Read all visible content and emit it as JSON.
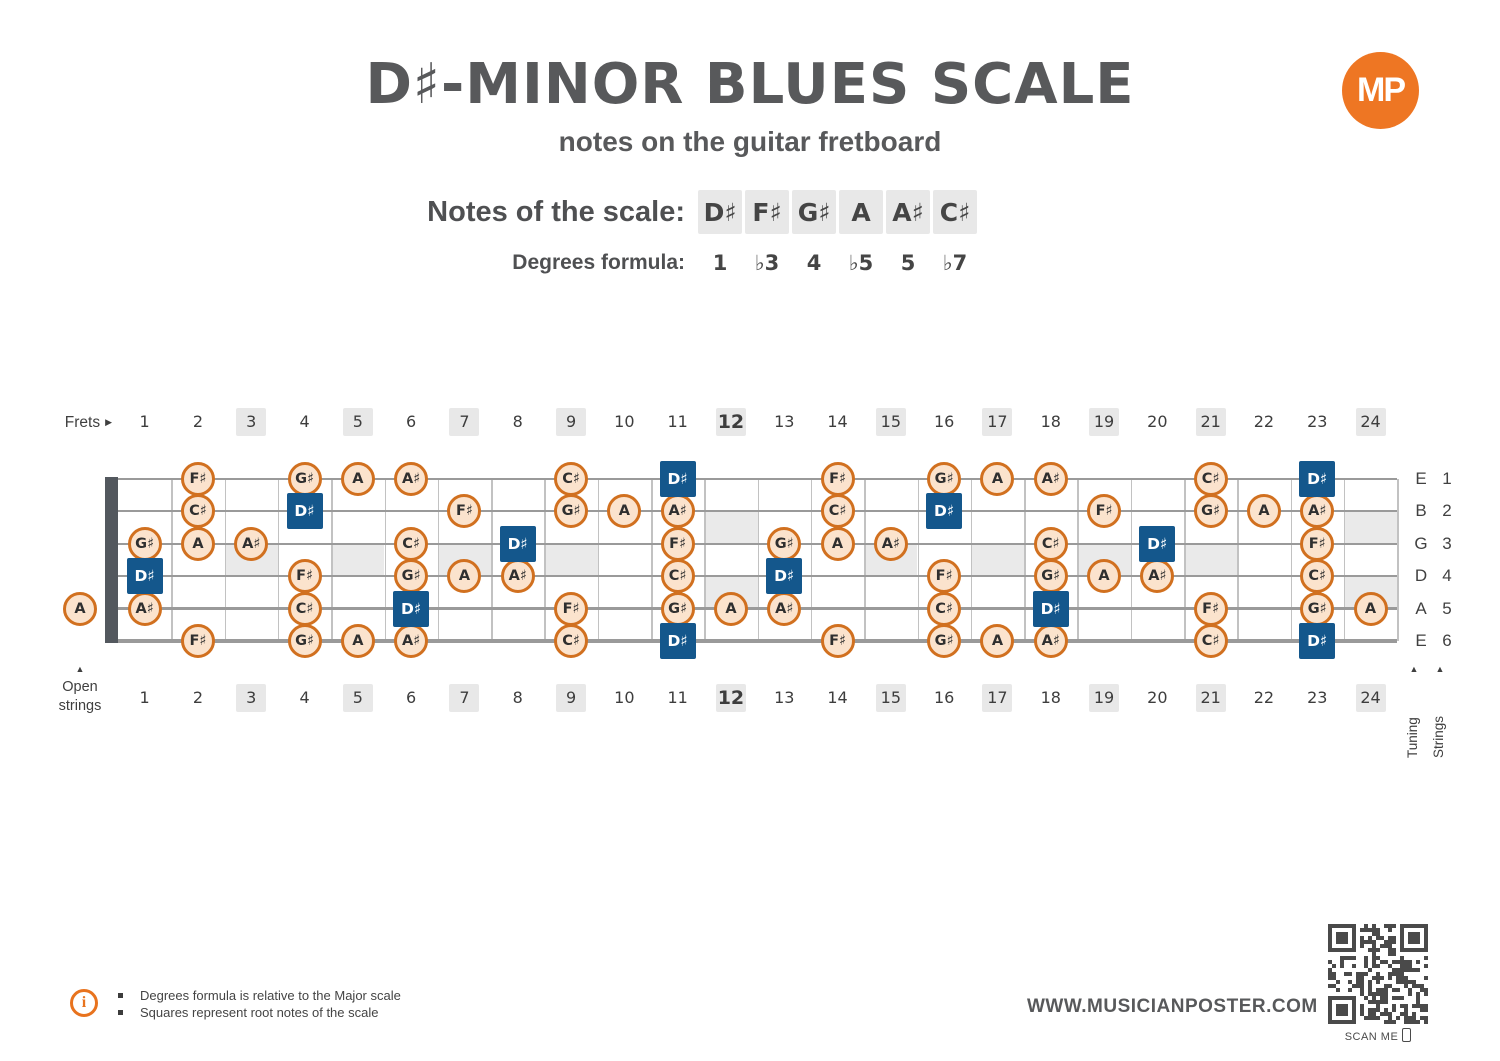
{
  "header": {
    "title": "D♯-MINOR BLUES SCALE",
    "subtitle": "notes on the guitar fretboard",
    "logo_text": "MP"
  },
  "scale": {
    "notes_label": "Notes of the scale:",
    "notes": [
      "D♯",
      "F♯",
      "G♯",
      "A",
      "A♯",
      "C♯"
    ],
    "degrees_label": "Degrees formula:",
    "degrees": [
      "1",
      "♭3",
      "4",
      "♭5",
      "5",
      "♭7"
    ]
  },
  "fretboard": {
    "frets_label": "Frets",
    "open_strings_label_line1": "Open",
    "open_strings_label_line2": "strings",
    "tuning_label": "Tuning",
    "strings_label": "Strings",
    "fret_count": 24,
    "marker_frets": [
      3,
      5,
      7,
      9,
      12,
      15,
      17,
      19,
      21,
      24
    ],
    "double_marker_frets": [
      12,
      24
    ],
    "bold_frets": [
      12
    ],
    "strings": [
      {
        "number": "1",
        "tuning": "E",
        "notes": [
          {
            "fret": 2,
            "note": "F♯"
          },
          {
            "fret": 4,
            "note": "G♯"
          },
          {
            "fret": 5,
            "note": "A"
          },
          {
            "fret": 6,
            "note": "A♯"
          },
          {
            "fret": 9,
            "note": "C♯"
          },
          {
            "fret": 11,
            "note": "D♯",
            "root": true
          },
          {
            "fret": 14,
            "note": "F♯"
          },
          {
            "fret": 16,
            "note": "G♯"
          },
          {
            "fret": 17,
            "note": "A"
          },
          {
            "fret": 18,
            "note": "A♯"
          },
          {
            "fret": 21,
            "note": "C♯"
          },
          {
            "fret": 23,
            "note": "D♯",
            "root": true
          }
        ]
      },
      {
        "number": "2",
        "tuning": "B",
        "notes": [
          {
            "fret": 2,
            "note": "C♯"
          },
          {
            "fret": 4,
            "note": "D♯",
            "root": true
          },
          {
            "fret": 7,
            "note": "F♯"
          },
          {
            "fret": 9,
            "note": "G♯"
          },
          {
            "fret": 10,
            "note": "A"
          },
          {
            "fret": 11,
            "note": "A♯"
          },
          {
            "fret": 14,
            "note": "C♯"
          },
          {
            "fret": 16,
            "note": "D♯",
            "root": true
          },
          {
            "fret": 19,
            "note": "F♯"
          },
          {
            "fret": 21,
            "note": "G♯"
          },
          {
            "fret": 22,
            "note": "A"
          },
          {
            "fret": 23,
            "note": "A♯"
          }
        ]
      },
      {
        "number": "3",
        "tuning": "G",
        "notes": [
          {
            "fret": 1,
            "note": "G♯"
          },
          {
            "fret": 2,
            "note": "A"
          },
          {
            "fret": 3,
            "note": "A♯"
          },
          {
            "fret": 6,
            "note": "C♯"
          },
          {
            "fret": 8,
            "note": "D♯",
            "root": true
          },
          {
            "fret": 11,
            "note": "F♯"
          },
          {
            "fret": 13,
            "note": "G♯"
          },
          {
            "fret": 14,
            "note": "A"
          },
          {
            "fret": 15,
            "note": "A♯"
          },
          {
            "fret": 18,
            "note": "C♯"
          },
          {
            "fret": 20,
            "note": "D♯",
            "root": true
          },
          {
            "fret": 23,
            "note": "F♯"
          }
        ]
      },
      {
        "number": "4",
        "tuning": "D",
        "notes": [
          {
            "fret": 1,
            "note": "D♯",
            "root": true
          },
          {
            "fret": 4,
            "note": "F♯"
          },
          {
            "fret": 6,
            "note": "G♯"
          },
          {
            "fret": 7,
            "note": "A"
          },
          {
            "fret": 8,
            "note": "A♯"
          },
          {
            "fret": 11,
            "note": "C♯"
          },
          {
            "fret": 13,
            "note": "D♯",
            "root": true
          },
          {
            "fret": 16,
            "note": "F♯"
          },
          {
            "fret": 18,
            "note": "G♯"
          },
          {
            "fret": 19,
            "note": "A"
          },
          {
            "fret": 20,
            "note": "A♯"
          },
          {
            "fret": 23,
            "note": "C♯"
          }
        ]
      },
      {
        "number": "5",
        "tuning": "A",
        "notes": [
          {
            "fret": 0,
            "note": "A"
          },
          {
            "fret": 1,
            "note": "A♯"
          },
          {
            "fret": 4,
            "note": "C♯"
          },
          {
            "fret": 6,
            "note": "D♯",
            "root": true
          },
          {
            "fret": 9,
            "note": "F♯"
          },
          {
            "fret": 11,
            "note": "G♯"
          },
          {
            "fret": 12,
            "note": "A"
          },
          {
            "fret": 13,
            "note": "A♯"
          },
          {
            "fret": 16,
            "note": "C♯"
          },
          {
            "fret": 18,
            "note": "D♯",
            "root": true
          },
          {
            "fret": 21,
            "note": "F♯"
          },
          {
            "fret": 23,
            "note": "G♯"
          },
          {
            "fret": 24,
            "note": "A"
          }
        ]
      },
      {
        "number": "6",
        "tuning": "E",
        "notes": [
          {
            "fret": 2,
            "note": "F♯"
          },
          {
            "fret": 4,
            "note": "G♯"
          },
          {
            "fret": 5,
            "note": "A"
          },
          {
            "fret": 6,
            "note": "A♯"
          },
          {
            "fret": 9,
            "note": "C♯"
          },
          {
            "fret": 11,
            "note": "D♯",
            "root": true
          },
          {
            "fret": 14,
            "note": "F♯"
          },
          {
            "fret": 16,
            "note": "G♯"
          },
          {
            "fret": 17,
            "note": "A"
          },
          {
            "fret": 18,
            "note": "A♯"
          },
          {
            "fret": 21,
            "note": "C♯"
          },
          {
            "fret": 23,
            "note": "D♯",
            "root": true
          }
        ]
      }
    ]
  },
  "footer": {
    "notes": [
      "Degrees formula is relative to the Major scale",
      "Squares represent root notes of the scale"
    ],
    "info_glyph": "i",
    "website": "WWW.MUSICIANPOSTER.COM",
    "scan_label": "SCAN ME"
  },
  "icons": {
    "frets_arrow": "▶",
    "up_arrow": "▲"
  },
  "colors": {
    "accent_orange": "#ee7623",
    "note_border": "#d1701f",
    "note_fill": "#fbe3cd",
    "root_blue": "#14578c",
    "marker_gray": "#eaeaea",
    "text_dark": "#58595b"
  }
}
